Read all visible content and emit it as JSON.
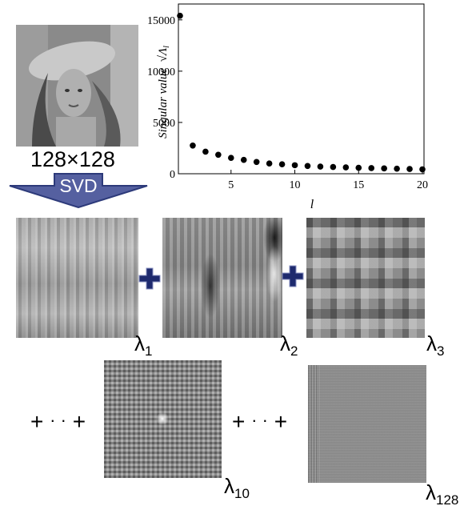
{
  "source_image": {
    "size_label": "128×128"
  },
  "svd_arrow": {
    "label": "SVD"
  },
  "chart_data": {
    "type": "scatter",
    "ylabel": "Singular value",
    "ylabel_symbol": "√Λ",
    "ylabel_symbol_sub": "l",
    "xlabel": "l",
    "xlim": [
      1,
      20
    ],
    "ylim": [
      0,
      16000
    ],
    "x_ticks": [
      "5",
      "10",
      "15",
      "20"
    ],
    "y_ticks": [
      "0",
      "5000",
      "10000",
      "15000"
    ],
    "x": [
      1,
      2,
      3,
      4,
      5,
      6,
      7,
      8,
      9,
      10,
      11,
      12,
      13,
      14,
      15,
      16,
      17,
      18,
      19,
      20
    ],
    "y": [
      15400,
      2750,
      2150,
      1850,
      1550,
      1350,
      1150,
      1000,
      920,
      830,
      760,
      700,
      660,
      620,
      580,
      550,
      520,
      490,
      460,
      430
    ],
    "grid": false
  },
  "components": [
    {
      "symbol": "λ",
      "index": "1"
    },
    {
      "symbol": "λ",
      "index": "2"
    },
    {
      "symbol": "λ",
      "index": "3"
    },
    {
      "symbol": "λ",
      "index": "10"
    },
    {
      "symbol": "λ",
      "index": "128"
    }
  ],
  "operators": {
    "plus": "+",
    "ellipsis": "· ·"
  },
  "colors": {
    "arrow_fill": "#5560a0",
    "arrow_stroke": "#2d3a7a",
    "plus_fill": "#1e2a6e",
    "points": "#000000"
  }
}
